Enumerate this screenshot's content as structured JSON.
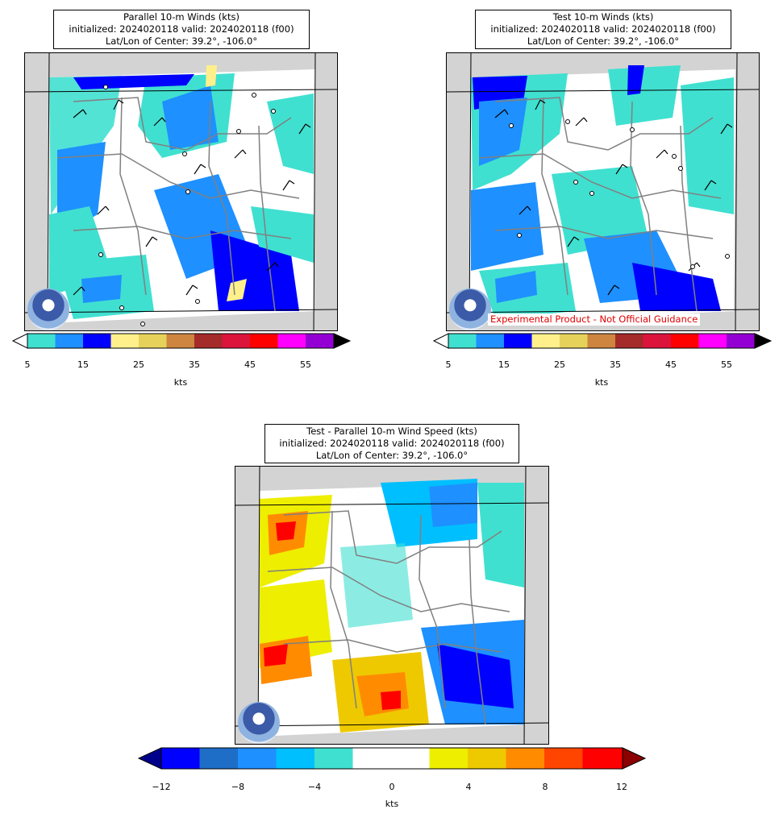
{
  "panel_top_left": {
    "title_line1": "Parallel 10-m Winds (kts)",
    "title_line2": "initialized: 2024020118 valid: 2024020118 (f00)",
    "title_line3": "Lat/Lon of Center: 39.2°, -106.0°"
  },
  "panel_top_right": {
    "title_line1": "Test 10-m Winds (kts)",
    "title_line2": "initialized: 2024020118 valid: 2024020118 (f00)",
    "title_line3": "Lat/Lon of Center: 39.2°, -106.0°",
    "disclaimer": "Experimental Product - Not Official Guidance"
  },
  "panel_bottom": {
    "title_line1": "Test - Parallel 10-m Wind Speed (kts)",
    "title_line2": "initialized: 2024020118 valid: 2024020118 (f00)",
    "title_line3": "Lat/Lon of Center: 39.2°, -106.0°"
  },
  "wind_colorbar": {
    "unit": "kts",
    "ticks": [
      "5",
      "15",
      "25",
      "35",
      "45",
      "55"
    ],
    "colors": [
      "#40e0d0",
      "#1e90ff",
      "#0000ff",
      "#fff08c",
      "#e6d25a",
      "#cd853f",
      "#a52a2a",
      "#dc143c",
      "#ff0000",
      "#ff00ff",
      "#9400d3"
    ],
    "under_color": "#ffffff",
    "over_color": "#000000"
  },
  "diff_colorbar": {
    "unit": "kts",
    "ticks": [
      "−12",
      "−8",
      "−4",
      "0",
      "4",
      "8",
      "12"
    ],
    "colors": [
      "#0000ff",
      "#1e6ec8",
      "#1e90ff",
      "#00bfff",
      "#40e0d0",
      "#ffffff",
      "#ffffff",
      "#eeee00",
      "#eec900",
      "#ff8c00",
      "#ff4500",
      "#ff0000"
    ],
    "under_color": "#00008b",
    "over_color": "#8b0000"
  },
  "logo": "noaa-logo"
}
